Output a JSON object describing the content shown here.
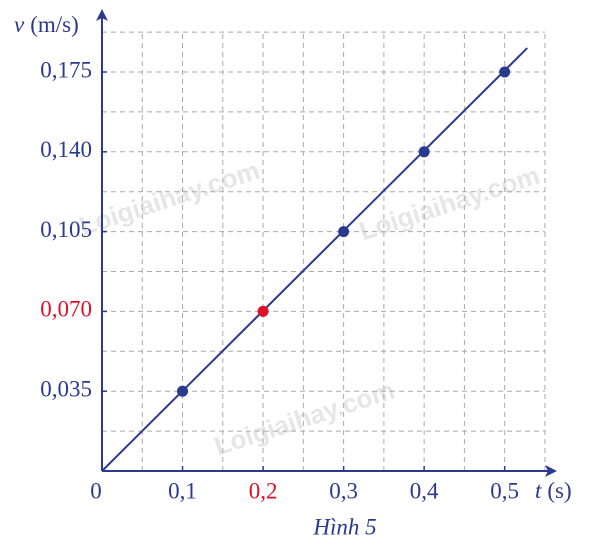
{
  "chart_data": {
    "type": "scatter",
    "ylabel_symbol": "v",
    "ylabel_unit": "(m/s)",
    "xlabel_symbol": "t",
    "xlabel_unit": "(s)",
    "caption": "Hình 5",
    "watermark": "Loigiaihay.com",
    "xlim": [
      0,
      0.56
    ],
    "ylim": [
      0,
      0.2
    ],
    "xticks": [
      0,
      {
        "value": 0.1,
        "label": "0,1"
      },
      {
        "value": 0.2,
        "label": "0,2",
        "color": "#e0102a"
      },
      {
        "value": 0.3,
        "label": "0,3"
      },
      {
        "value": 0.4,
        "label": "0,4"
      },
      {
        "value": 0.5,
        "label": "0,5"
      }
    ],
    "yticks": [
      {
        "value": 0.035,
        "label": "0,035"
      },
      {
        "value": 0.07,
        "label": "0,070",
        "color": "#e0102a"
      },
      {
        "value": 0.105,
        "label": "0,105"
      },
      {
        "value": 0.14,
        "label": "0,140"
      },
      {
        "value": 0.175,
        "label": "0,175"
      }
    ],
    "xgrid": [
      0.05,
      0.1,
      0.15,
      0.2,
      0.25,
      0.3,
      0.35,
      0.4,
      0.45,
      0.5,
      0.55
    ],
    "ygrid": [
      0.0175,
      0.035,
      0.0525,
      0.07,
      0.0875,
      0.105,
      0.1225,
      0.14,
      0.1575,
      0.175,
      0.1925
    ],
    "grid": true,
    "line": {
      "x": [
        0,
        0.528
      ],
      "values": [
        0,
        0.1855
      ],
      "color": "#2b3990"
    },
    "points": {
      "x": [
        0.1,
        0.2,
        0.3,
        0.4,
        0.5
      ],
      "values": [
        0.035,
        0.07,
        0.105,
        0.14,
        0.175
      ],
      "colors": [
        "#2b3990",
        "#e0102a",
        "#2b3990",
        "#2b3990",
        "#2b3990"
      ]
    }
  }
}
